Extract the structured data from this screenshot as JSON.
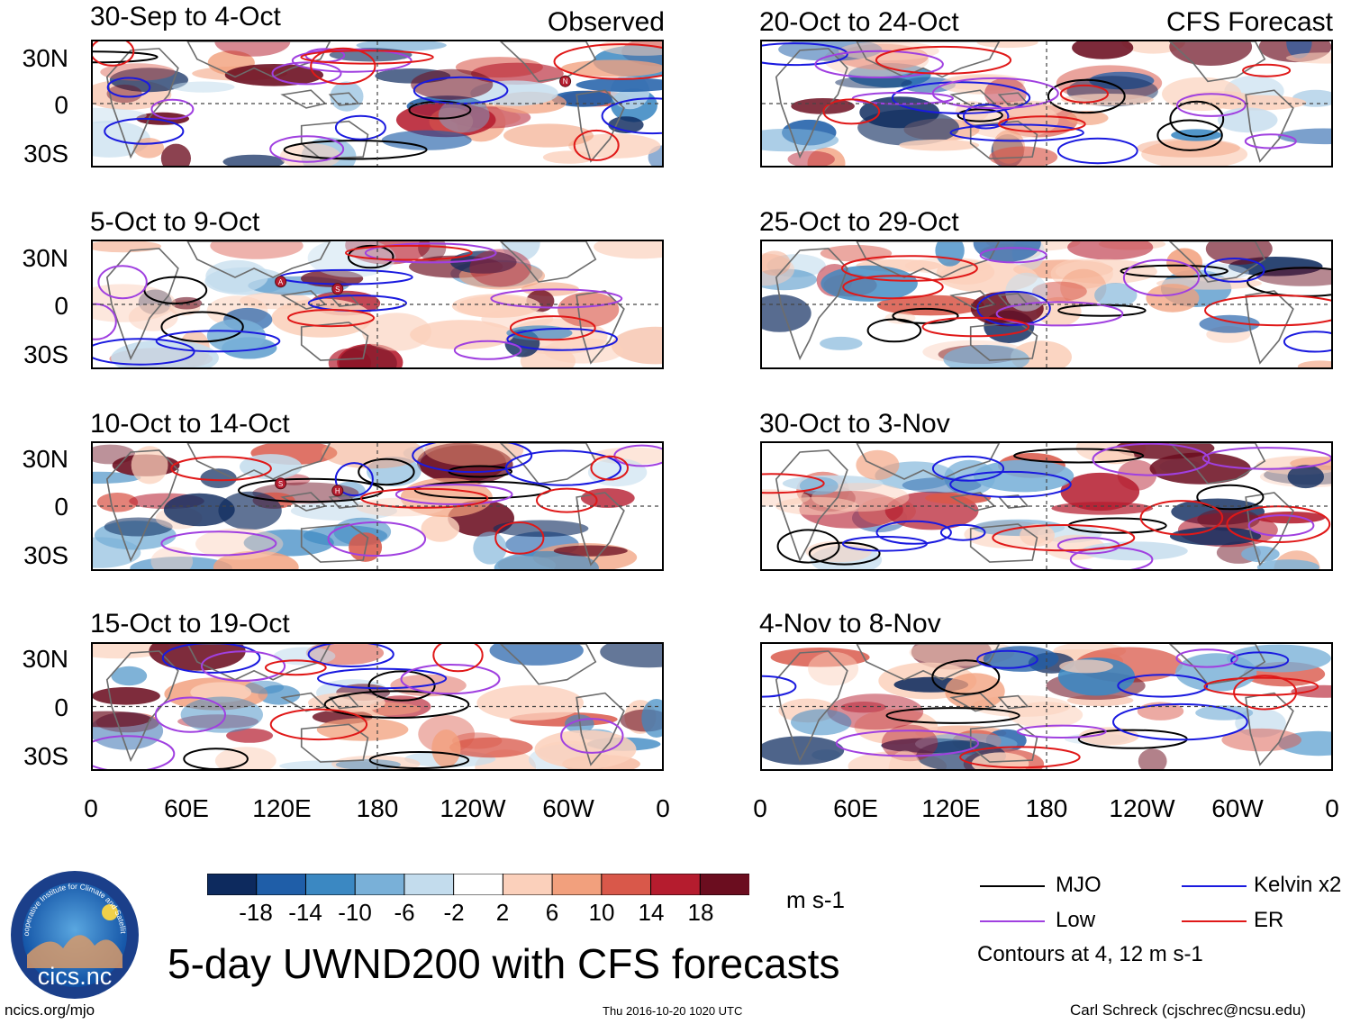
{
  "chart_data": {
    "type": "heatmap",
    "title": "5-day UWND200 with CFS forecasts",
    "variable": "UWND200",
    "units": "m s-1",
    "observed_label": "Observed",
    "forecast_label": "CFS Forecast",
    "panels": [
      {
        "period": "30-Sep to 4-Oct",
        "column": "Observed",
        "storms": [
          "N"
        ]
      },
      {
        "period": "5-Oct to 9-Oct",
        "column": "Observed",
        "storms": [
          "A",
          "S"
        ]
      },
      {
        "period": "10-Oct to 14-Oct",
        "column": "Observed",
        "storms": [
          "S",
          "H"
        ]
      },
      {
        "period": "15-Oct to 19-Oct",
        "column": "Observed",
        "storms": []
      },
      {
        "period": "20-Oct to 24-Oct",
        "column": "CFS Forecast",
        "storms": []
      },
      {
        "period": "25-Oct to 29-Oct",
        "column": "CFS Forecast",
        "storms": []
      },
      {
        "period": "30-Oct to 3-Nov",
        "column": "CFS Forecast",
        "storms": []
      },
      {
        "period": "4-Nov to 8-Nov",
        "column": "CFS Forecast",
        "storms": []
      }
    ],
    "lat_ticks": [
      "30N",
      "0",
      "30S"
    ],
    "lon_ticks": [
      "0",
      "60E",
      "120E",
      "180",
      "120W",
      "60W",
      "0"
    ],
    "lon_range": [
      0,
      360
    ],
    "lat_range": [
      -40,
      40
    ],
    "colorbar": {
      "ticks": [
        "-18",
        "-14",
        "-10",
        "-6",
        "-2",
        "2",
        "6",
        "10",
        "14",
        "18"
      ],
      "tick_values": [
        -18,
        -14,
        -10,
        -6,
        -2,
        2,
        6,
        10,
        14,
        18
      ],
      "colors": [
        "#0d2a5e",
        "#1f5ea8",
        "#3b88c2",
        "#79b0d8",
        "#c3dced",
        "#ffffff",
        "#fbd0bb",
        "#f2a07d",
        "#d9584a",
        "#b51c2e",
        "#6b0d1f"
      ]
    },
    "contour_legend": [
      {
        "label": "MJO",
        "color": "#000000"
      },
      {
        "label": "Kelvin x2",
        "color": "#1a1adf"
      },
      {
        "label": "Low",
        "color": "#a040e0"
      },
      {
        "label": "ER",
        "color": "#e01818"
      }
    ],
    "contour_note": "Contours at 4, 12 m s-1"
  },
  "footer": {
    "left": "ncics.org/mjo",
    "center": "Thu 2016-10-20 1020 UTC",
    "right": "Carl Schreck (cjschrec@ncsu.edu)"
  },
  "logo": {
    "main_text": "cics.nc",
    "ring_text": "Cooperative Institute for Climate and Satellites"
  }
}
